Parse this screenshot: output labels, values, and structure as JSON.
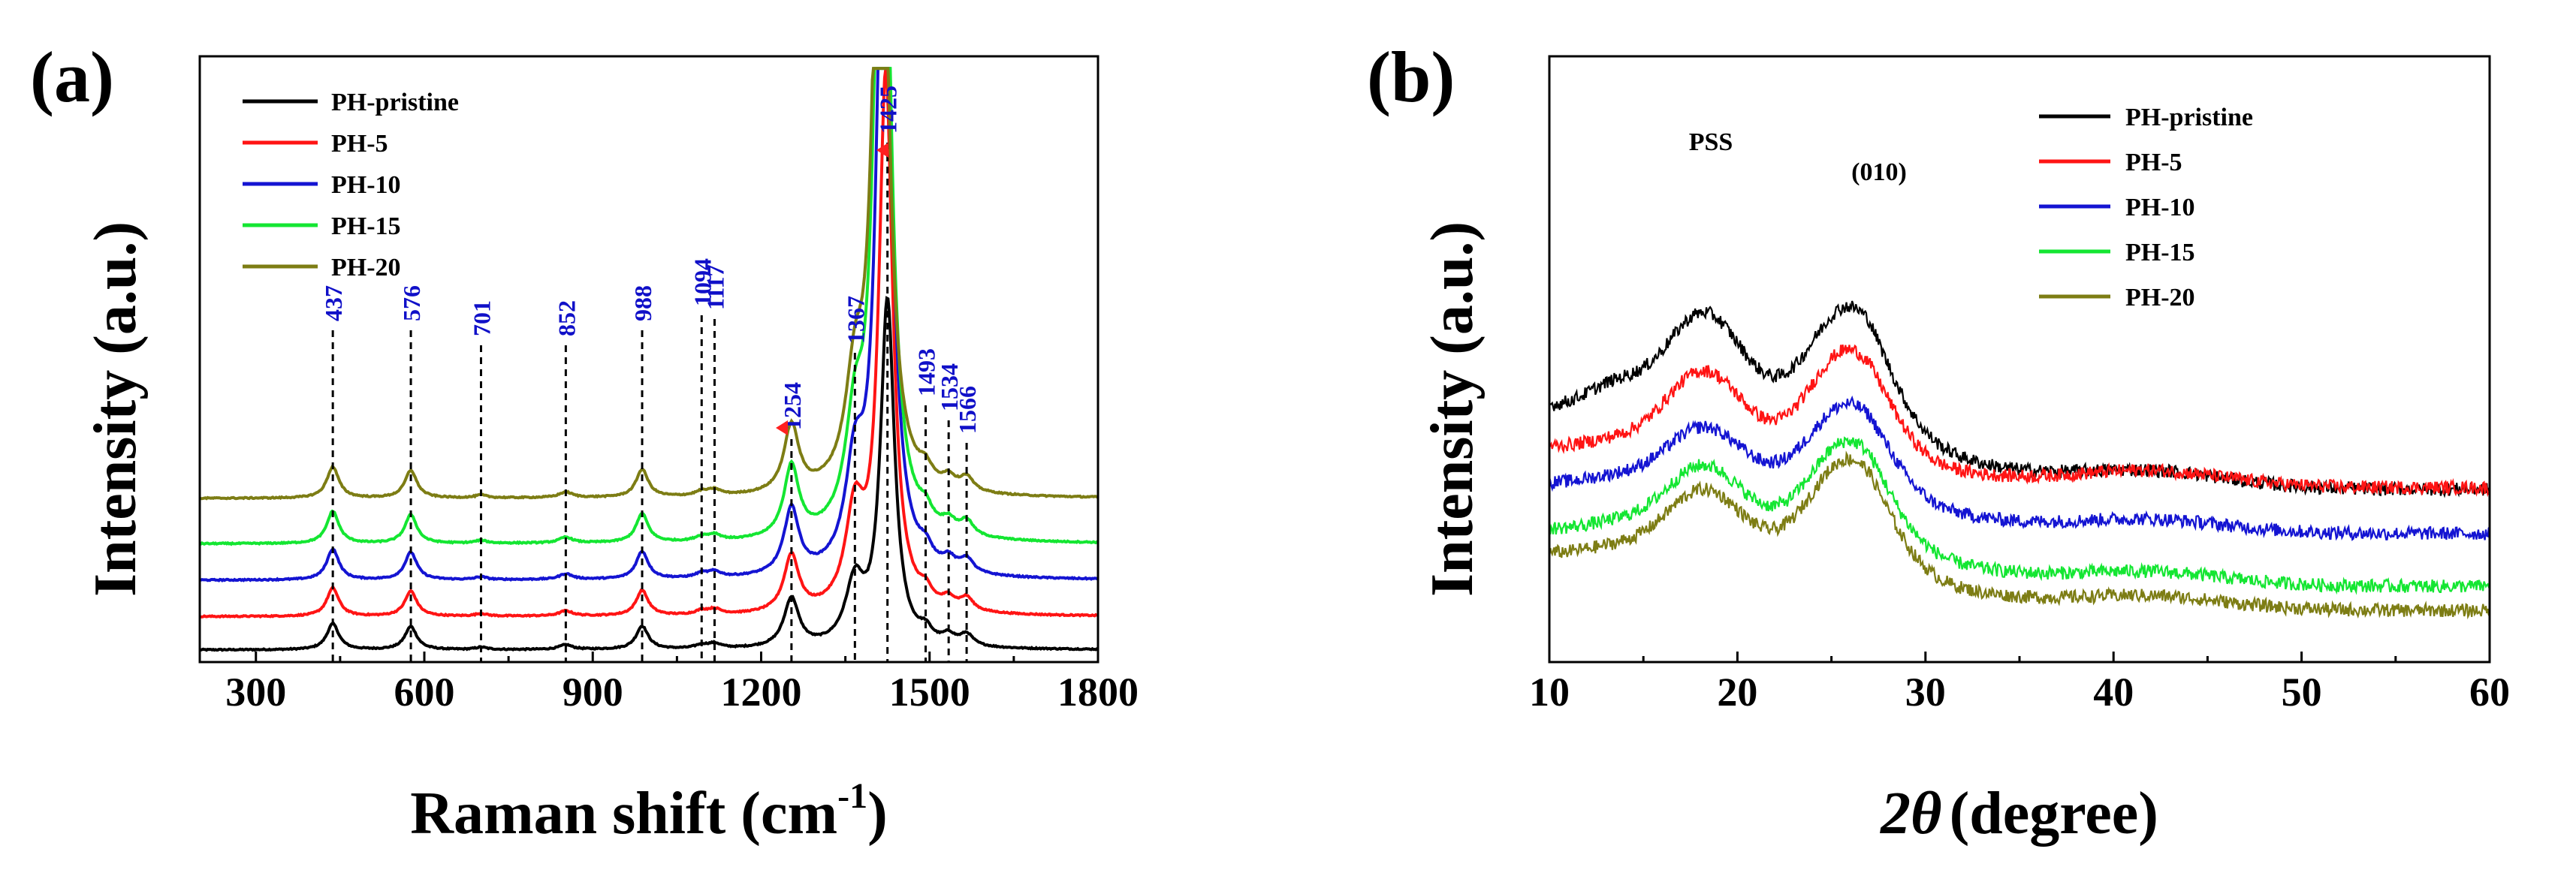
{
  "colors": {
    "PH-pristine": "#000000",
    "PH-5": "#ff1414",
    "PH-10": "#1414d2",
    "PH-15": "#14e632",
    "PH-20": "#7d7d14",
    "peak_label": "#1010c8",
    "arrow": "#ff2020"
  },
  "chart_data": [
    {
      "type": "line",
      "panel_label": "(a)",
      "title": "",
      "xlabel": "Raman shift (cm",
      "xlabel_sup": "-1",
      "xlabel_end": ")",
      "ylabel": "Intensity (a.u.)",
      "xlim": [
        200,
        1800
      ],
      "ylim": [
        0,
        10
      ],
      "xticks": [
        300,
        600,
        900,
        1200,
        1500,
        1800
      ],
      "grid": false,
      "legend_position": "top-left",
      "series": [
        {
          "name": "PH-pristine",
          "offset": 0.2,
          "scale": 1.0
        },
        {
          "name": "PH-5",
          "offset": 0.75,
          "scale": 1.55
        },
        {
          "name": "PH-10",
          "offset": 1.35,
          "scale": 2.2
        },
        {
          "name": "PH-15",
          "offset": 1.95,
          "scale": 2.55
        },
        {
          "name": "PH-20",
          "offset": 2.7,
          "scale": 2.25
        }
      ],
      "peaks": [
        {
          "name": "437",
          "x": 437,
          "h": 0.45,
          "w": 13
        },
        {
          "name": "576",
          "x": 576,
          "h": 0.4,
          "w": 13
        },
        {
          "name": "701",
          "x": 701,
          "h": 0.04,
          "w": 12
        },
        {
          "name": "852",
          "x": 852,
          "h": 0.08,
          "w": 14
        },
        {
          "name": "988",
          "x": 988,
          "h": 0.4,
          "w": 13
        },
        {
          "name": "1094",
          "x": 1094,
          "h": 0.06,
          "w": 14
        },
        {
          "name": "1117",
          "x": 1117,
          "h": 0.08,
          "w": 14
        },
        {
          "name": "1254",
          "x": 1254,
          "h": 0.95,
          "w": 16
        },
        {
          "name": "1367",
          "x": 1367,
          "h": 1.0,
          "w": 20
        },
        {
          "name": "1425",
          "x": 1425,
          "h": 5.7,
          "w": 15
        },
        {
          "name": "1493",
          "x": 1493,
          "h": 0.2,
          "w": 14
        },
        {
          "name": "1534",
          "x": 1534,
          "h": 0.16,
          "w": 14
        },
        {
          "name": "1566",
          "x": 1566,
          "h": 0.2,
          "w": 14
        }
      ],
      "peak_labels": [
        "437",
        "576",
        "701",
        "852",
        "988",
        "1094",
        "1117",
        "1254",
        "1367",
        "1425",
        "1493",
        "1534",
        "1566"
      ]
    },
    {
      "type": "line",
      "panel_label": "(b)",
      "title": "",
      "xlabel": "(degree)",
      "xlabel_symbol": "2θ",
      "ylabel": "Intensity (a.u.)",
      "xlim": [
        10,
        60
      ],
      "ylim": [
        0,
        10
      ],
      "xticks": [
        10,
        20,
        30,
        40,
        50,
        60
      ],
      "grid": false,
      "legend_position": "top-right",
      "annotations": [
        {
          "text": "PSS",
          "x": 18.2
        },
        {
          "text": "(010)",
          "x": 25.9
        }
      ],
      "series": [
        {
          "name": "PH-pristine",
          "base": 4.22,
          "tail": 2.85,
          "pss": 1.55,
          "p010": 1.65
        },
        {
          "name": "PH-5",
          "base": 3.56,
          "tail": 2.88,
          "pss": 1.25,
          "p010": 1.6
        },
        {
          "name": "PH-10",
          "base": 2.96,
          "tail": 2.12,
          "pss": 0.92,
          "p010": 1.3
        },
        {
          "name": "PH-15",
          "base": 2.2,
          "tail": 1.25,
          "pss": 1.05,
          "p010": 1.45
        },
        {
          "name": "PH-20",
          "base": 1.8,
          "tail": 0.85,
          "pss": 1.05,
          "p010": 1.55
        }
      ]
    }
  ]
}
